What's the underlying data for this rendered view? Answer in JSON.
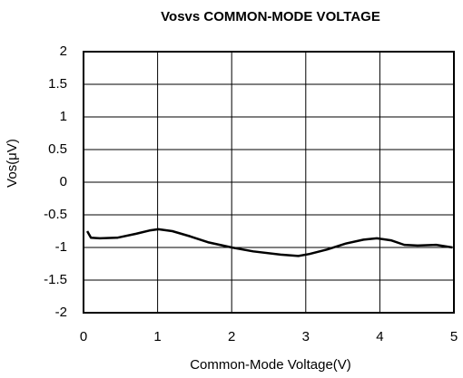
{
  "chart_data": {
    "type": "line",
    "title": "Vosvs COMMON-MODE VOLTAGE",
    "xlabel": "Common-Mode Voltage(V)",
    "ylabel": "Vos(μV)",
    "xlim": [
      0,
      5
    ],
    "xticks": [
      0,
      1,
      2,
      3,
      4,
      5
    ],
    "ylim": [
      -2,
      2
    ],
    "yticks": [
      2,
      1.5,
      1,
      0.5,
      0,
      -0.5,
      -1,
      -1.5,
      -2
    ],
    "grid": true,
    "series": [
      {
        "color": "#000000",
        "x": [
          0.05,
          0.1,
          0.22,
          0.46,
          0.71,
          0.89,
          1.01,
          1.2,
          1.44,
          1.68,
          2.0,
          2.29,
          2.66,
          2.9,
          3.05,
          3.29,
          3.54,
          3.78,
          3.96,
          4.15,
          4.33,
          4.51,
          4.76,
          4.98
        ],
        "values": [
          -0.75,
          -0.85,
          -0.86,
          -0.85,
          -0.79,
          -0.74,
          -0.72,
          -0.75,
          -0.83,
          -0.92,
          -1.0,
          -1.06,
          -1.11,
          -1.13,
          -1.1,
          -1.03,
          -0.94,
          -0.88,
          -0.86,
          -0.89,
          -0.96,
          -0.97,
          -0.96,
          -1.0
        ]
      }
    ]
  }
}
